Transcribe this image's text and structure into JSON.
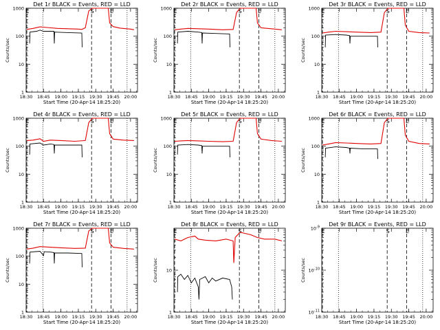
{
  "figure": {
    "xlabel": "Start Time (20-Apr-14 18:25:20)",
    "ylabel": "Counts/sec",
    "x_ticks": [
      "18:30",
      "18:45",
      "19:00",
      "19:15",
      "19:30",
      "19:45",
      "20:00"
    ],
    "x_tick_values": [
      18.5,
      18.75,
      19.0,
      19.25,
      19.5,
      19.75,
      20.0
    ],
    "xlim": [
      18.5,
      20.1
    ],
    "line_colors": {
      "events": "#000000",
      "lld": "#e00000"
    },
    "vertical_markers": [
      {
        "label": "E",
        "x": 18.51,
        "style": "dashed"
      },
      {
        "label": "S",
        "x": 19.44,
        "style": "dashed"
      },
      {
        "label": "E",
        "x": 19.72,
        "style": "dashed"
      },
      {
        "label": "",
        "x": 18.74,
        "style": "dotted"
      },
      {
        "label": "",
        "x": 19.95,
        "style": "dotted"
      }
    ]
  },
  "chart_data": [
    {
      "type": "line",
      "title": "Det 1r BLACK = Events, RED = LLD",
      "ylim": [
        1,
        1000
      ],
      "y_ticks": [
        "1",
        "10",
        "100",
        "1000"
      ],
      "y_tick_values": [
        1,
        10,
        100,
        1000
      ],
      "series": [
        {
          "name": "LLD",
          "color": "#e00000",
          "points": [
            [
              18.51,
              175
            ],
            [
              18.6,
              190
            ],
            [
              18.7,
              215
            ],
            [
              18.8,
              205
            ],
            [
              18.95,
              190
            ],
            [
              19.1,
              185
            ],
            [
              19.25,
              180
            ],
            [
              19.3,
              175
            ],
            [
              19.35,
              200
            ],
            [
              19.4,
              800
            ],
            [
              19.45,
              1000
            ],
            [
              19.68,
              1000
            ],
            [
              19.7,
              300
            ],
            [
              19.75,
              220
            ],
            [
              19.85,
              195
            ],
            [
              20.0,
              180
            ],
            [
              20.05,
              170
            ]
          ]
        },
        {
          "name": "Events",
          "color": "#000000",
          "points": [
            [
              18.55,
              55
            ],
            [
              18.555,
              140
            ],
            [
              18.65,
              150
            ],
            [
              18.7,
              165
            ],
            [
              18.75,
              150
            ],
            [
              18.9,
              150
            ],
            [
              18.905,
              55
            ],
            [
              18.91,
              140
            ],
            [
              19.1,
              135
            ],
            [
              19.3,
              130
            ],
            [
              19.305,
              40
            ]
          ]
        }
      ]
    },
    {
      "type": "line",
      "title": "Det 2r BLACK = Events, RED = LLD",
      "ylim": [
        1,
        1000
      ],
      "y_ticks": [
        "1",
        "10",
        "100",
        "1000"
      ],
      "y_tick_values": [
        1,
        10,
        100,
        1000
      ],
      "series": [
        {
          "name": "LLD",
          "color": "#e00000",
          "points": [
            [
              18.51,
              170
            ],
            [
              18.6,
              180
            ],
            [
              18.7,
              190
            ],
            [
              18.85,
              185
            ],
            [
              19.0,
              180
            ],
            [
              19.2,
              170
            ],
            [
              19.35,
              175
            ],
            [
              19.4,
              700
            ],
            [
              19.45,
              1000
            ],
            [
              19.68,
              1000
            ],
            [
              19.7,
              300
            ],
            [
              19.75,
              200
            ],
            [
              19.9,
              185
            ],
            [
              20.05,
              170
            ]
          ]
        },
        {
          "name": "Events",
          "color": "#000000",
          "points": [
            [
              18.55,
              55
            ],
            [
              18.555,
              140
            ],
            [
              18.7,
              150
            ],
            [
              18.85,
              140
            ],
            [
              18.9,
              135
            ],
            [
              18.905,
              55
            ],
            [
              18.91,
              130
            ],
            [
              19.1,
              125
            ],
            [
              19.3,
              120
            ],
            [
              19.305,
              40
            ]
          ]
        }
      ]
    },
    {
      "type": "line",
      "title": "Det 3r BLACK = Events, RED = LLD",
      "ylim": [
        1,
        1000
      ],
      "y_ticks": [
        "1",
        "10",
        "100",
        "1000"
      ],
      "y_tick_values": [
        1,
        10,
        100,
        1000
      ],
      "series": [
        {
          "name": "LLD",
          "color": "#e00000",
          "points": [
            [
              18.51,
              130
            ],
            [
              18.6,
              140
            ],
            [
              18.7,
              150
            ],
            [
              18.85,
              145
            ],
            [
              19.0,
              140
            ],
            [
              19.2,
              135
            ],
            [
              19.35,
              140
            ],
            [
              19.4,
              700
            ],
            [
              19.45,
              1000
            ],
            [
              19.68,
              1000
            ],
            [
              19.7,
              250
            ],
            [
              19.75,
              150
            ],
            [
              19.9,
              135
            ],
            [
              20.05,
              130
            ]
          ]
        },
        {
          "name": "Events",
          "color": "#000000",
          "points": [
            [
              18.55,
              40
            ],
            [
              18.555,
              110
            ],
            [
              18.7,
              115
            ],
            [
              18.85,
              110
            ],
            [
              18.9,
              105
            ],
            [
              18.905,
              55
            ],
            [
              18.91,
              100
            ],
            [
              19.1,
              100
            ],
            [
              19.3,
              100
            ],
            [
              19.305,
              40
            ]
          ]
        }
      ]
    },
    {
      "type": "line",
      "title": "Det 4r BLACK = Events, RED = LLD",
      "ylim": [
        1,
        1000
      ],
      "y_ticks": [
        "1",
        "10",
        "100",
        "1000"
      ],
      "y_tick_values": [
        1,
        10,
        100,
        1000
      ],
      "series": [
        {
          "name": "LLD",
          "color": "#e00000",
          "points": [
            [
              18.51,
              160
            ],
            [
              18.6,
              165
            ],
            [
              18.7,
              185
            ],
            [
              18.75,
              150
            ],
            [
              18.85,
              165
            ],
            [
              19.0,
              160
            ],
            [
              19.2,
              150
            ],
            [
              19.35,
              160
            ],
            [
              19.4,
              700
            ],
            [
              19.45,
              1000
            ],
            [
              19.68,
              1000
            ],
            [
              19.7,
              280
            ],
            [
              19.75,
              180
            ],
            [
              19.9,
              165
            ],
            [
              20.05,
              160
            ]
          ]
        },
        {
          "name": "Events",
          "color": "#000000",
          "points": [
            [
              18.55,
              50
            ],
            [
              18.555,
              120
            ],
            [
              18.7,
              130
            ],
            [
              18.75,
              110
            ],
            [
              18.85,
              120
            ],
            [
              18.9,
              115
            ],
            [
              18.905,
              55
            ],
            [
              18.91,
              110
            ],
            [
              19.1,
              110
            ],
            [
              19.3,
              110
            ],
            [
              19.305,
              40
            ]
          ]
        }
      ]
    },
    {
      "type": "line",
      "title": "Det 5r BLACK = Events, RED = LLD",
      "ylim": [
        1,
        1000
      ],
      "y_ticks": [
        "1",
        "10",
        "100",
        "1000"
      ],
      "y_tick_values": [
        1,
        10,
        100,
        1000
      ],
      "series": [
        {
          "name": "LLD",
          "color": "#e00000",
          "points": [
            [
              18.51,
              150
            ],
            [
              18.6,
              155
            ],
            [
              18.7,
              160
            ],
            [
              18.85,
              155
            ],
            [
              19.0,
              150
            ],
            [
              19.2,
              145
            ],
            [
              19.35,
              150
            ],
            [
              19.4,
              700
            ],
            [
              19.45,
              1000
            ],
            [
              19.68,
              1000
            ],
            [
              19.7,
              280
            ],
            [
              19.75,
              180
            ],
            [
              19.9,
              160
            ],
            [
              20.05,
              150
            ]
          ]
        },
        {
          "name": "Events",
          "color": "#000000",
          "points": [
            [
              18.55,
              50
            ],
            [
              18.555,
              110
            ],
            [
              18.7,
              115
            ],
            [
              18.85,
              110
            ],
            [
              18.9,
              105
            ],
            [
              18.905,
              55
            ],
            [
              18.91,
              100
            ],
            [
              19.1,
              100
            ],
            [
              19.3,
              100
            ],
            [
              19.305,
              40
            ]
          ]
        }
      ]
    },
    {
      "type": "line",
      "title": "Det 6r BLACK = Events, RED = LLD",
      "ylim": [
        1,
        1000
      ],
      "y_ticks": [
        "1",
        "10",
        "100",
        "1000"
      ],
      "y_tick_values": [
        1,
        10,
        100,
        1000
      ],
      "series": [
        {
          "name": "LLD",
          "color": "#e00000",
          "points": [
            [
              18.51,
              110
            ],
            [
              18.6,
              120
            ],
            [
              18.7,
              135
            ],
            [
              18.85,
              130
            ],
            [
              19.0,
              125
            ],
            [
              19.2,
              120
            ],
            [
              19.35,
              125
            ],
            [
              19.4,
              700
            ],
            [
              19.45,
              1000
            ],
            [
              19.68,
              1000
            ],
            [
              19.7,
              250
            ],
            [
              19.75,
              150
            ],
            [
              19.9,
              125
            ],
            [
              20.05,
              120
            ]
          ]
        },
        {
          "name": "Events",
          "color": "#000000",
          "points": [
            [
              18.55,
              40
            ],
            [
              18.555,
              85
            ],
            [
              18.7,
              95
            ],
            [
              18.85,
              90
            ],
            [
              18.9,
              85
            ],
            [
              18.905,
              55
            ],
            [
              18.91,
              85
            ],
            [
              19.1,
              80
            ],
            [
              19.3,
              80
            ],
            [
              19.305,
              35
            ]
          ]
        }
      ]
    },
    {
      "type": "line",
      "title": "Det 7r BLACK = Events, RED = LLD",
      "ylim": [
        1,
        1000
      ],
      "y_ticks": [
        "1",
        "10",
        "100",
        "1000"
      ],
      "y_tick_values": [
        1,
        10,
        100,
        1000
      ],
      "series": [
        {
          "name": "LLD",
          "color": "#e00000",
          "points": [
            [
              18.51,
              180
            ],
            [
              18.6,
              195
            ],
            [
              18.7,
              220
            ],
            [
              18.85,
              210
            ],
            [
              19.0,
              200
            ],
            [
              19.2,
              190
            ],
            [
              19.35,
              195
            ],
            [
              19.4,
              800
            ],
            [
              19.45,
              1000
            ],
            [
              19.68,
              1000
            ],
            [
              19.7,
              300
            ],
            [
              19.75,
              210
            ],
            [
              19.9,
              190
            ],
            [
              20.05,
              180
            ]
          ]
        },
        {
          "name": "Events",
          "color": "#000000",
          "points": [
            [
              18.55,
              55
            ],
            [
              18.555,
              140
            ],
            [
              18.7,
              150
            ],
            [
              18.75,
              105
            ],
            [
              18.76,
              145
            ],
            [
              18.85,
              140
            ],
            [
              18.9,
              135
            ],
            [
              18.905,
              55
            ],
            [
              18.91,
              130
            ],
            [
              19.1,
              130
            ],
            [
              19.3,
              125
            ],
            [
              19.305,
              40
            ]
          ]
        }
      ]
    },
    {
      "type": "line",
      "title": "Det 8r BLACK = Events, RED = LLD",
      "ylim": [
        1,
        100
      ],
      "y_ticks": [
        "1",
        "10"
      ],
      "y_tick_values": [
        1,
        10
      ],
      "series": [
        {
          "name": "LLD",
          "color": "#e00000",
          "points": [
            [
              18.51,
              55
            ],
            [
              18.6,
              50
            ],
            [
              18.7,
              60
            ],
            [
              18.8,
              65
            ],
            [
              18.85,
              55
            ],
            [
              18.95,
              52
            ],
            [
              19.1,
              50
            ],
            [
              19.25,
              55
            ],
            [
              19.35,
              50
            ],
            [
              19.36,
              15
            ],
            [
              19.38,
              60
            ],
            [
              19.45,
              80
            ],
            [
              19.6,
              70
            ],
            [
              19.7,
              60
            ],
            [
              19.8,
              55
            ],
            [
              19.95,
              55
            ],
            [
              20.05,
              50
            ]
          ]
        },
        {
          "name": "Events",
          "color": "#000000",
          "points": [
            [
              18.55,
              3
            ],
            [
              18.555,
              7
            ],
            [
              18.6,
              8
            ],
            [
              18.65,
              6
            ],
            [
              18.7,
              7.5
            ],
            [
              18.75,
              5
            ],
            [
              18.8,
              6.5
            ],
            [
              18.85,
              4
            ],
            [
              18.86,
              2
            ],
            [
              18.87,
              6
            ],
            [
              18.95,
              7
            ],
            [
              19.0,
              5
            ],
            [
              19.05,
              6.5
            ],
            [
              19.1,
              5.5
            ],
            [
              19.2,
              6.5
            ],
            [
              19.3,
              6
            ],
            [
              19.33,
              4
            ],
            [
              19.34,
              2
            ]
          ]
        }
      ]
    },
    {
      "type": "line",
      "title": "Det 9r BLACK = Events, RED = LLD",
      "ylim": [
        1e-11,
        1e-09
      ],
      "y_ticks": [
        "10^-11",
        "10^-10",
        "10^-9"
      ],
      "y_tick_values": [
        1e-11,
        1e-10,
        1e-09
      ],
      "series": []
    }
  ]
}
